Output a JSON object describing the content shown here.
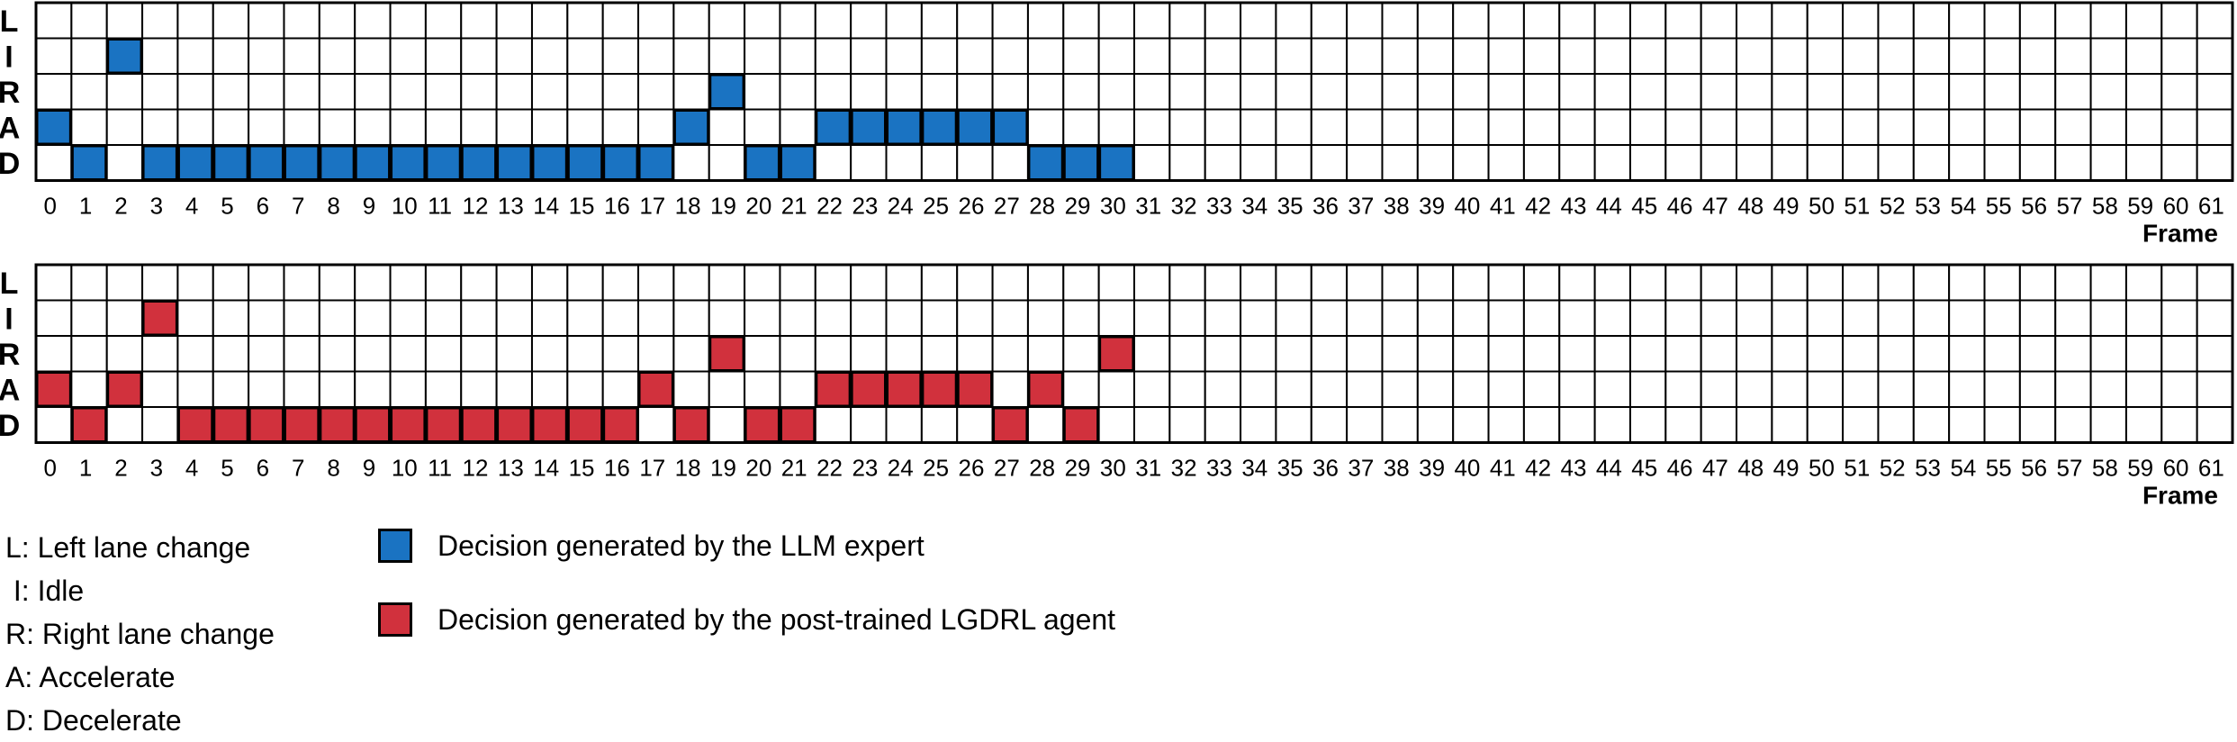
{
  "chart_data": [
    {
      "type": "heatmap",
      "name": "LLM expert",
      "rows": [
        "L",
        "I",
        "R",
        "A",
        "D"
      ],
      "xlabel": "Frame",
      "frames": [
        0,
        1,
        2,
        3,
        4,
        5,
        6,
        7,
        8,
        9,
        10,
        11,
        12,
        13,
        14,
        15,
        16,
        17,
        18,
        19,
        20,
        21,
        22,
        23,
        24,
        25,
        26,
        27,
        28,
        29,
        30,
        31,
        32,
        33,
        34,
        35,
        36,
        37,
        38,
        39,
        40,
        41,
        42,
        43,
        44,
        45,
        46,
        47,
        48,
        49,
        50,
        51,
        52,
        53,
        54,
        55,
        56,
        57,
        58,
        59,
        60,
        61
      ],
      "decisions": [
        "A",
        "D",
        "I",
        "D",
        "D",
        "D",
        "D",
        "D",
        "D",
        "D",
        "D",
        "D",
        "D",
        "D",
        "D",
        "D",
        "D",
        "D",
        "A",
        "R",
        "D",
        "D",
        "A",
        "A",
        "A",
        "A",
        "A",
        "A",
        "D",
        "D",
        "D"
      ],
      "color": "#1a73c2"
    },
    {
      "type": "heatmap",
      "name": "post-trained LGDRL agent",
      "rows": [
        "L",
        "I",
        "R",
        "A",
        "D"
      ],
      "xlabel": "Frame",
      "frames": [
        0,
        1,
        2,
        3,
        4,
        5,
        6,
        7,
        8,
        9,
        10,
        11,
        12,
        13,
        14,
        15,
        16,
        17,
        18,
        19,
        20,
        21,
        22,
        23,
        24,
        25,
        26,
        27,
        28,
        29,
        30,
        31,
        32,
        33,
        34,
        35,
        36,
        37,
        38,
        39,
        40,
        41,
        42,
        43,
        44,
        45,
        46,
        47,
        48,
        49,
        50,
        51,
        52,
        53,
        54,
        55,
        56,
        57,
        58,
        59,
        60,
        61
      ],
      "decisions": [
        "A",
        "D",
        "A",
        "I",
        "D",
        "D",
        "D",
        "D",
        "D",
        "D",
        "D",
        "D",
        "D",
        "D",
        "D",
        "D",
        "D",
        "A",
        "D",
        "R",
        "D",
        "D",
        "A",
        "A",
        "A",
        "A",
        "A",
        "D",
        "A",
        "D",
        "R"
      ],
      "color": "#d1313d"
    }
  ],
  "legend": {
    "abbreviations": [
      "L: Left lane change",
      " I: Idle",
      "R: Right lane change",
      "A: Accelerate",
      "D: Decelerate"
    ],
    "items": [
      {
        "text": "Decision generated by the LLM expert",
        "color": "#1a73c2"
      },
      {
        "text": "Decision generated by the post-trained LGDRL agent",
        "color": "#d1313d"
      }
    ]
  }
}
